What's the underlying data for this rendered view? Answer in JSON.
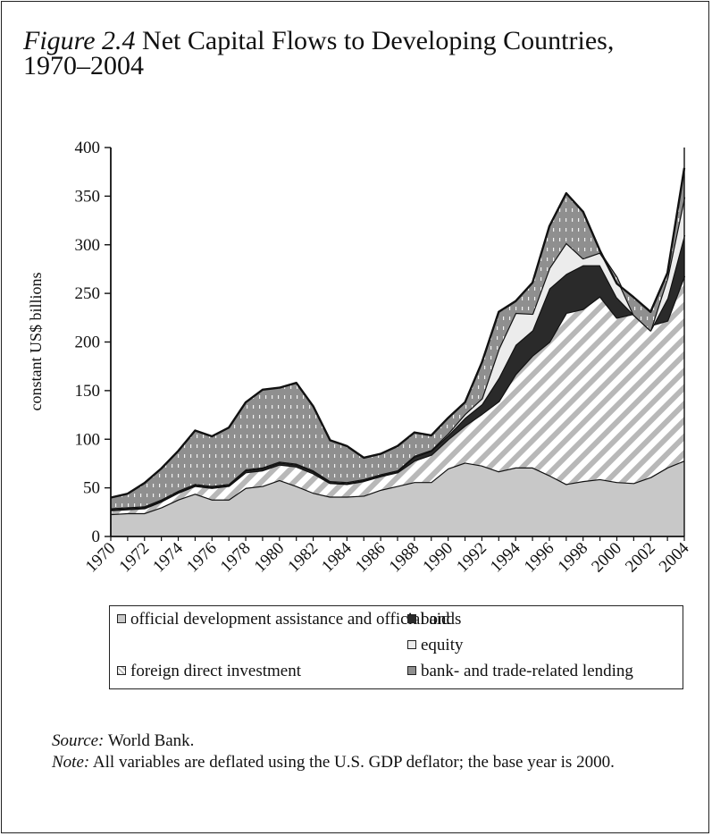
{
  "figure": {
    "label": "Figure 2.4",
    "title": "Net Capital Flows to Developing Countries, 1970–2004"
  },
  "source": {
    "label": "Source:",
    "text": "World Bank."
  },
  "note": {
    "label": "Note:",
    "text": "All variables are deflated using the U.S. GDP deflator; the base year is 2000."
  },
  "colors": {
    "oda": "#c8c8c8",
    "fdi_base": "#ffffff",
    "fdi_stripe": "#b8b8b8",
    "bonds": "#2a2a2a",
    "equity": "#ececec",
    "bank": "#8f8f8f",
    "bank_dash": "#f2f2f2"
  },
  "chart_data": {
    "type": "area",
    "stacked": true,
    "ylabel": "constant US$ billions",
    "xlabel": "",
    "ylim": [
      0,
      400
    ],
    "yticks": [
      0,
      50,
      100,
      150,
      200,
      250,
      300,
      350,
      400
    ],
    "xticks": [
      1970,
      1972,
      1974,
      1976,
      1978,
      1980,
      1982,
      1984,
      1986,
      1988,
      1990,
      1992,
      1994,
      1996,
      1998,
      2000,
      2002,
      2004
    ],
    "x": [
      1970,
      1971,
      1972,
      1973,
      1974,
      1975,
      1976,
      1977,
      1978,
      1979,
      1980,
      1981,
      1982,
      1983,
      1984,
      1985,
      1986,
      1987,
      1988,
      1989,
      1990,
      1991,
      1992,
      1993,
      1994,
      1995,
      1996,
      1997,
      1998,
      1999,
      2000,
      2001,
      2002,
      2003,
      2004
    ],
    "series": [
      {
        "key": "oda",
        "name": "official development assistance and official aid",
        "values": [
          23,
          24,
          24,
          30,
          38,
          44,
          38,
          38,
          50,
          52,
          58,
          52,
          45,
          41,
          41,
          42,
          48,
          52,
          56,
          56,
          70,
          76,
          73,
          67,
          71,
          71,
          63,
          54,
          57,
          59,
          56,
          55,
          61,
          71,
          78
        ]
      },
      {
        "key": "fdi",
        "name": "foreign direct investment",
        "values": [
          4,
          4,
          5,
          6,
          7,
          8,
          12,
          14,
          16,
          16,
          16,
          20,
          20,
          14,
          13,
          15,
          14,
          14,
          22,
          28,
          30,
          38,
          53,
          72,
          96,
          115,
          137,
          176,
          177,
          188,
          169,
          174,
          156,
          151,
          190
        ]
      },
      {
        "key": "bonds",
        "name": "bonds",
        "values": [
          1,
          1,
          1,
          1,
          1,
          1,
          1,
          1,
          2,
          2,
          2,
          2,
          2,
          1,
          1,
          1,
          1,
          1,
          4,
          4,
          4,
          8,
          10,
          24,
          30,
          26,
          55,
          40,
          45,
          32,
          21,
          -1,
          -5,
          23,
          42
        ]
      },
      {
        "key": "equity",
        "name": "equity",
        "values": [
          1,
          1,
          1,
          1,
          1,
          1,
          1,
          1,
          1,
          1,
          1,
          1,
          1,
          1,
          1,
          1,
          1,
          1,
          1,
          1,
          2,
          4,
          6,
          30,
          33,
          17,
          21,
          32,
          7,
          13,
          20,
          0,
          0,
          21,
          39
        ]
      },
      {
        "key": "bank",
        "name": "bank- and trade-related lending",
        "values": [
          11,
          14,
          24,
          32,
          41,
          55,
          51,
          58,
          69,
          80,
          76,
          83,
          66,
          42,
          37,
          22,
          21,
          25,
          24,
          15,
          16,
          12,
          37,
          38,
          12,
          32,
          43,
          51,
          48,
          2,
          -6,
          18,
          19,
          5,
          30
        ]
      }
    ],
    "legend_layout": [
      [
        "oda",
        "bonds"
      ],
      [
        null,
        "equity"
      ],
      [
        "fdi",
        "bank"
      ]
    ],
    "legend_placement": "bottom",
    "grid": false
  }
}
